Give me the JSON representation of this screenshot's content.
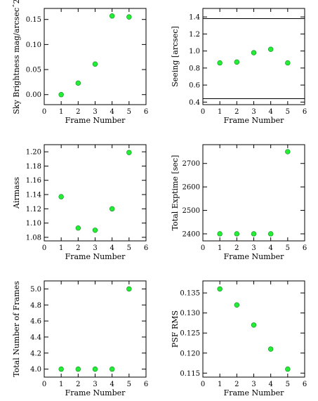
{
  "colors": {
    "marker_fill": "#22ee33",
    "marker_stroke": "#118822",
    "axis": "#000000"
  },
  "chart_data": [
    {
      "type": "scatter",
      "xlabel": "Frame Number",
      "ylabel": "Sky Brightness mag/arcsecˆ2",
      "xlim": [
        0,
        6
      ],
      "ylim": [
        -0.02,
        0.172
      ],
      "x_ticks": [
        "0",
        "1",
        "2",
        "3",
        "4",
        "5",
        "6"
      ],
      "y_ticks": [
        {
          "v": 0.0,
          "label": "0.00"
        },
        {
          "v": 0.05,
          "label": "0.05"
        },
        {
          "v": 0.1,
          "label": "0.10"
        },
        {
          "v": 0.15,
          "label": "0.15"
        }
      ],
      "x": [
        1,
        2,
        3,
        4,
        5
      ],
      "y": [
        0.0,
        0.023,
        0.061,
        0.157,
        0.155
      ],
      "hlines": []
    },
    {
      "type": "scatter",
      "xlabel": "Frame Number",
      "ylabel": "Seeing [arcsec]",
      "xlim": [
        0,
        6
      ],
      "ylim": [
        0.37,
        1.5
      ],
      "x_ticks": [
        "0",
        "1",
        "2",
        "3",
        "4",
        "5",
        "6"
      ],
      "y_ticks": [
        {
          "v": 0.4,
          "label": "0.4"
        },
        {
          "v": 0.6,
          "label": "0.6"
        },
        {
          "v": 0.8,
          "label": "0.8"
        },
        {
          "v": 1.0,
          "label": "1.0"
        },
        {
          "v": 1.2,
          "label": "1.2"
        },
        {
          "v": 1.4,
          "label": "1.4"
        }
      ],
      "x": [
        1,
        2,
        3,
        4,
        5
      ],
      "y": [
        0.86,
        0.87,
        0.98,
        1.02,
        0.86
      ],
      "hlines": [
        1.38,
        0.44
      ]
    },
    {
      "type": "scatter",
      "xlabel": "Frame Number",
      "ylabel": "Airmass",
      "xlim": [
        0,
        6
      ],
      "ylim": [
        1.075,
        1.21
      ],
      "x_ticks": [
        "0",
        "1",
        "2",
        "3",
        "4",
        "5",
        "6"
      ],
      "y_ticks": [
        {
          "v": 1.08,
          "label": "1.08"
        },
        {
          "v": 1.1,
          "label": "1.10"
        },
        {
          "v": 1.12,
          "label": "1.12"
        },
        {
          "v": 1.14,
          "label": "1.14"
        },
        {
          "v": 1.16,
          "label": "1.16"
        },
        {
          "v": 1.18,
          "label": "1.18"
        },
        {
          "v": 1.2,
          "label": "1.20"
        }
      ],
      "x": [
        1,
        2,
        3,
        4,
        5
      ],
      "y": [
        1.137,
        1.093,
        1.09,
        1.12,
        1.199
      ],
      "hlines": []
    },
    {
      "type": "scatter",
      "xlabel": "Frame Number",
      "ylabel": "Total Exptime [sec]",
      "xlim": [
        0,
        6
      ],
      "ylim": [
        2370,
        2780
      ],
      "x_ticks": [
        "0",
        "1",
        "2",
        "3",
        "4",
        "5",
        "6"
      ],
      "y_ticks": [
        {
          "v": 2400,
          "label": "2400"
        },
        {
          "v": 2500,
          "label": "2500"
        },
        {
          "v": 2600,
          "label": "2600"
        },
        {
          "v": 2700,
          "label": "2700"
        }
      ],
      "x": [
        1,
        2,
        3,
        4,
        5
      ],
      "y": [
        2400,
        2400,
        2400,
        2400,
        2750
      ],
      "hlines": []
    },
    {
      "type": "scatter",
      "xlabel": "Frame Number",
      "ylabel": "Total Number of Frames",
      "xlim": [
        0,
        6
      ],
      "ylim": [
        3.9,
        5.1
      ],
      "x_ticks": [
        "0",
        "1",
        "2",
        "3",
        "4",
        "5",
        "6"
      ],
      "y_ticks": [
        {
          "v": 4.0,
          "label": "4.0"
        },
        {
          "v": 4.2,
          "label": "4.2"
        },
        {
          "v": 4.4,
          "label": "4.4"
        },
        {
          "v": 4.6,
          "label": "4.6"
        },
        {
          "v": 4.8,
          "label": "4.8"
        },
        {
          "v": 5.0,
          "label": "5.0"
        }
      ],
      "x": [
        1,
        2,
        3,
        4,
        5
      ],
      "y": [
        4,
        4,
        4,
        4,
        5
      ],
      "hlines": []
    },
    {
      "type": "scatter",
      "xlabel": "Frame Number",
      "ylabel": "PSF RMS",
      "xlim": [
        0,
        6
      ],
      "ylim": [
        0.114,
        0.138
      ],
      "x_ticks": [
        "0",
        "1",
        "2",
        "3",
        "4",
        "5",
        "6"
      ],
      "y_ticks": [
        {
          "v": 0.115,
          "label": "0.115"
        },
        {
          "v": 0.12,
          "label": "0.120"
        },
        {
          "v": 0.125,
          "label": "0.125"
        },
        {
          "v": 0.13,
          "label": "0.130"
        },
        {
          "v": 0.135,
          "label": "0.135"
        }
      ],
      "x": [
        1,
        2,
        3,
        4,
        5
      ],
      "y": [
        0.136,
        0.132,
        0.127,
        0.121,
        0.116
      ],
      "hlines": []
    }
  ]
}
